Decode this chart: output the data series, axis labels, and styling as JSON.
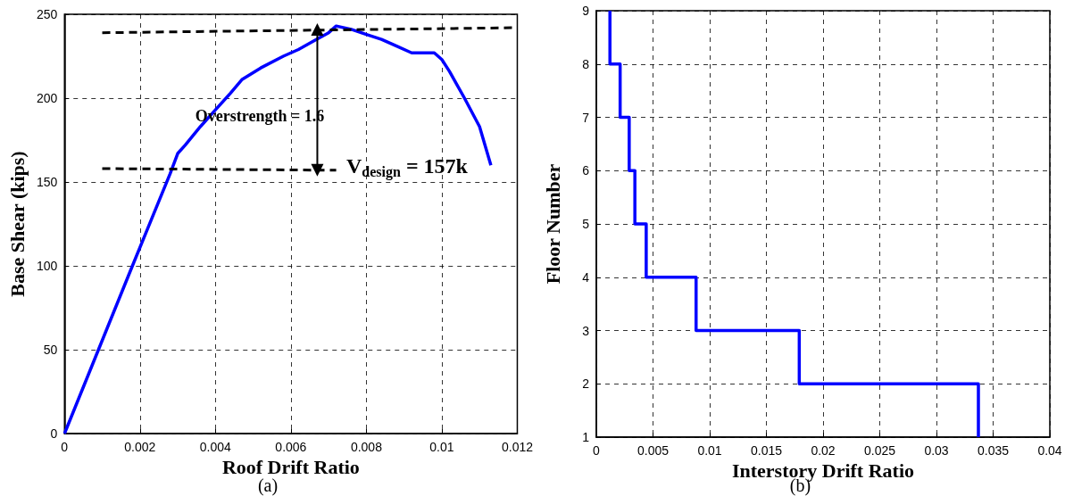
{
  "chart_data": [
    {
      "type": "line",
      "xlabel": "Roof Drift Ratio",
      "ylabel": "Base Shear (kips)",
      "xlim": [
        0,
        0.012
      ],
      "ylim": [
        0,
        250
      ],
      "xticks": [
        0,
        0.002,
        0.004,
        0.006,
        0.008,
        0.01,
        0.012
      ],
      "yticks": [
        0,
        50,
        100,
        150,
        200,
        250
      ],
      "grid": true,
      "marker": "none",
      "series": [
        {
          "color": "#0000ff",
          "x": [
            0,
            0.0009,
            0.0018,
            0.0028,
            0.003,
            0.0032,
            0.0036,
            0.004,
            0.0044,
            0.0047,
            0.0052,
            0.0058,
            0.0062,
            0.0066,
            0.007,
            0.0072,
            0.0076,
            0.008,
            0.0084,
            0.0088,
            0.0092,
            0.0094,
            0.0098,
            0.01,
            0.0102,
            0.0106,
            0.011,
            0.0113
          ],
          "values": [
            0,
            50,
            100,
            155,
            167,
            172,
            183,
            193,
            203,
            211,
            218,
            225,
            229,
            234,
            239,
            243,
            241,
            238,
            235,
            231,
            227,
            227,
            227,
            223,
            216,
            200,
            183,
            160
          ]
        },
        {
          "color": "#000000",
          "line_style": "dashed",
          "x": [
            0.001,
            0.012
          ],
          "values": [
            239,
            242
          ]
        },
        {
          "color": "#000000",
          "line_style": "dashed",
          "x": [
            0.001,
            0.0072
          ],
          "values": [
            158,
            157
          ]
        },
        {
          "color": "#000000",
          "marker": "triangle",
          "x": [
            0.0067,
            0.0067
          ],
          "values": [
            157,
            241
          ]
        }
      ],
      "annotations": [
        "Overstrength = 1.6",
        "V$_{design}$ = 157k",
        "(a)"
      ]
    },
    {
      "type": "line",
      "xlabel": "Interstory Drift Ratio",
      "ylabel": "Floor Number",
      "xlim": [
        0,
        0.04
      ],
      "ylim": [
        1,
        9
      ],
      "xticks": [
        0,
        0.005,
        0.01,
        0.015,
        0.02,
        0.025,
        0.03,
        0.035,
        0.04
      ],
      "yticks": [
        1,
        2,
        3,
        4,
        5,
        6,
        7,
        8,
        9
      ],
      "grid": true,
      "marker": "none",
      "series": [
        {
          "color": "#0000ff",
          "x": [
            0.0012,
            0.0012,
            0.0021,
            0.0021,
            0.0029,
            0.0029,
            0.0034,
            0.0034,
            0.0044,
            0.0044,
            0.0088,
            0.0088,
            0.0179,
            0.0179,
            0.0337,
            0.0337
          ],
          "values": [
            9,
            8,
            8,
            7,
            7,
            6,
            6,
            5,
            5,
            4,
            4,
            3,
            3,
            2,
            2,
            1
          ]
        }
      ],
      "annotations": [
        "(b)"
      ]
    }
  ]
}
